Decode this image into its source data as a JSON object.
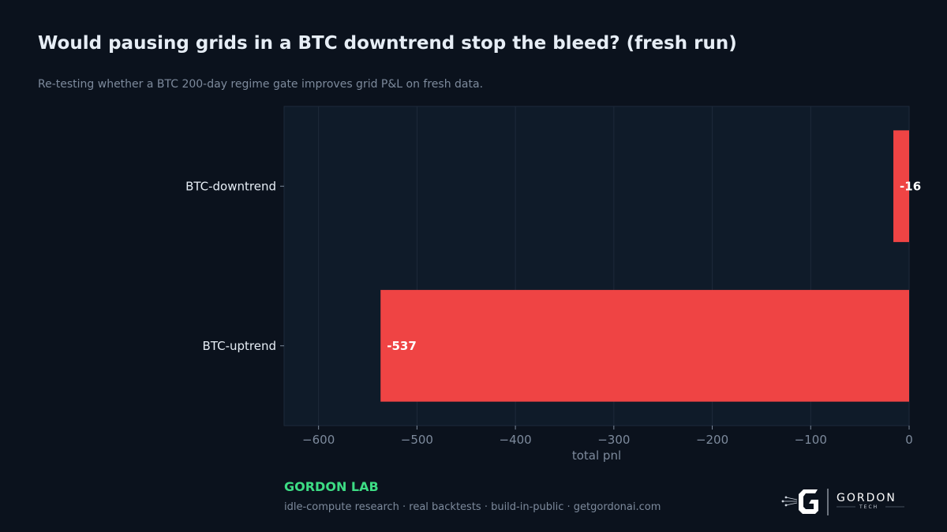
{
  "header": {
    "title": "Would pausing grids in a BTC downtrend stop the bleed? (fresh run)",
    "subtitle": "Re-testing whether a BTC 200-day regime gate improves grid P&L on fresh data."
  },
  "footer": {
    "brand": "GORDON LAB",
    "tagline": "idle-compute research · real backtests · build-in-public · getgordonai.com",
    "logo_text": "GORDON",
    "logo_subtext": "TECH"
  },
  "colors": {
    "background": "#0b121d",
    "plot_background": "#0f1b29",
    "bar": "#ef4444",
    "brand": "#3ddc84",
    "text": "#e6edf5",
    "muted": "#7d8a9c",
    "grid": "#1e2a3a"
  },
  "chart_data": {
    "type": "bar",
    "orientation": "horizontal",
    "categories": [
      "BTC-downtrend",
      "BTC-uptrend"
    ],
    "values": [
      -16,
      -537
    ],
    "value_labels": [
      "-16",
      "-537"
    ],
    "xlabel": "total pnl",
    "ylabel": "",
    "xlim": [
      -635,
      0
    ],
    "xticks": [
      -600,
      -500,
      -400,
      -300,
      -200,
      -100,
      0
    ],
    "xtick_labels": [
      "−600",
      "−500",
      "−400",
      "−300",
      "−200",
      "−100",
      "0"
    ],
    "grid": true
  }
}
